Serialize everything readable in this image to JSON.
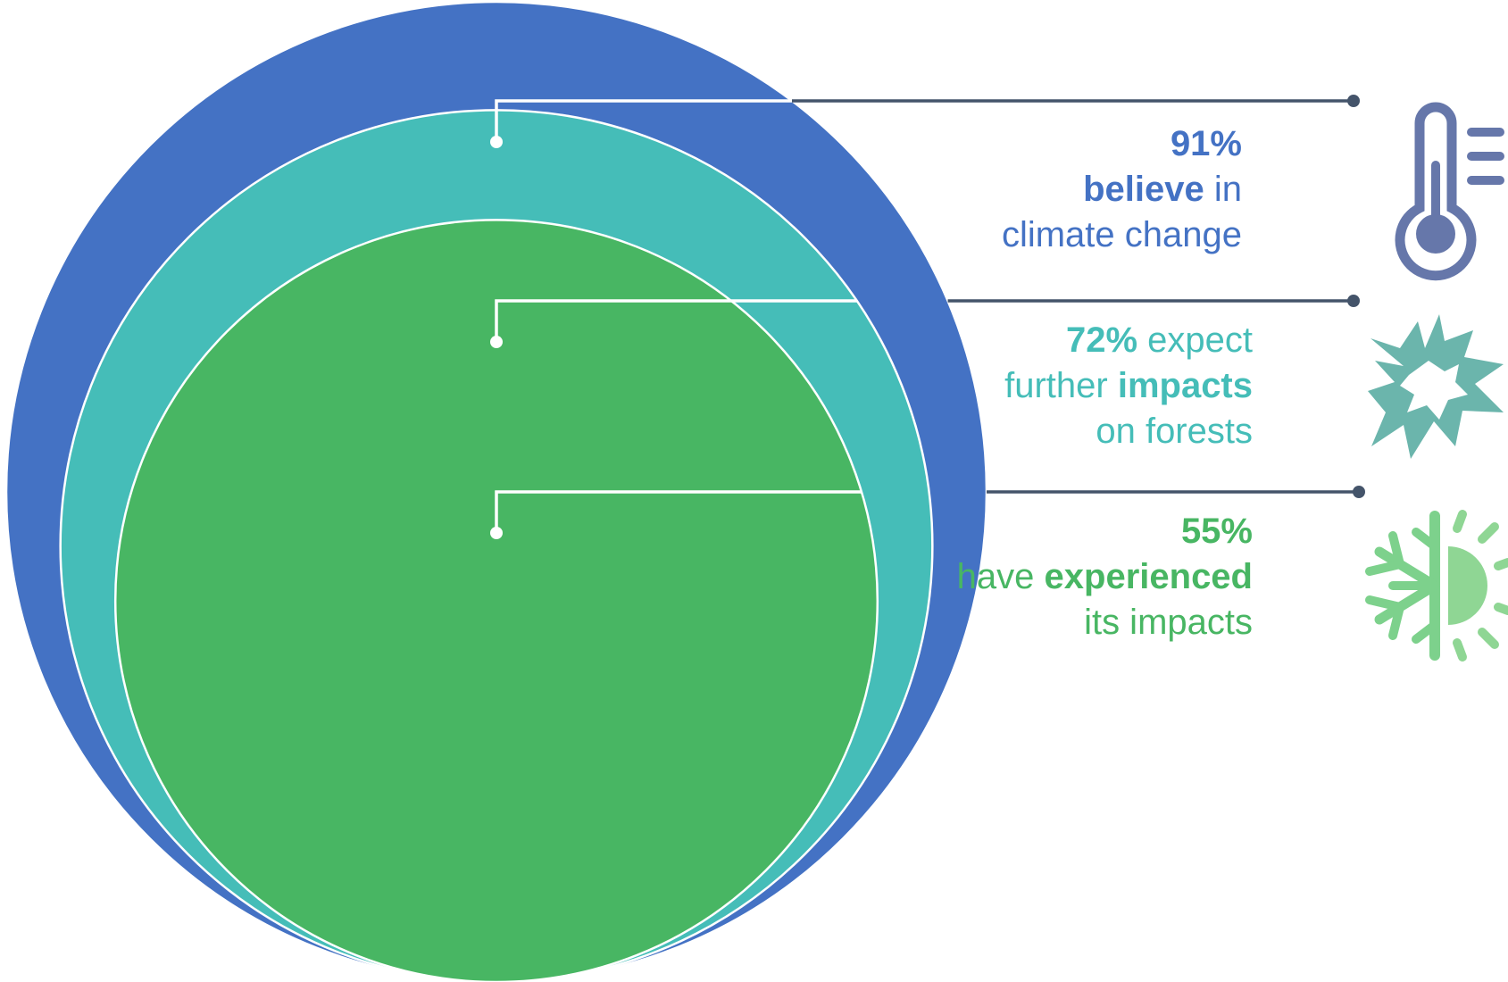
{
  "chart_data": {
    "type": "nested-circles",
    "unit": "%",
    "series": [
      {
        "value": 91,
        "color": "#4472C4",
        "label_parts": [
          {
            "text": "91%",
            "bold": true,
            "br": true
          },
          {
            "text": "believe",
            "bold": true
          },
          {
            "text": " in",
            "bold": false,
            "br": true
          },
          {
            "text": "climate change",
            "bold": false
          }
        ],
        "icon": "thermometer-icon"
      },
      {
        "value": 72,
        "color": "#45BDB8",
        "label_parts": [
          {
            "text": "72%",
            "bold": true
          },
          {
            "text": " expect",
            "bold": false,
            "br": true
          },
          {
            "text": "further ",
            "bold": false
          },
          {
            "text": "impacts",
            "bold": true,
            "br": true
          },
          {
            "text": "on forests",
            "bold": false
          }
        ],
        "icon": "storm-burst-icon"
      },
      {
        "value": 55,
        "color": "#48B663",
        "label_parts": [
          {
            "text": "55%",
            "bold": true,
            "br": true
          },
          {
            "text": "have ",
            "bold": false
          },
          {
            "text": "experienced",
            "bold": true,
            "br": true
          },
          {
            "text": "its impacts",
            "bold": false
          }
        ],
        "icon": "snowflake-sun-icon"
      }
    ]
  },
  "colors": {
    "leader_line": "#44546A",
    "circle_border": "#ffffff",
    "icon_thermometer": "#6677AA",
    "icon_burst": "#6BB5AC",
    "icon_snow": "#7DD18C",
    "icon_sun": "#8FD694"
  }
}
